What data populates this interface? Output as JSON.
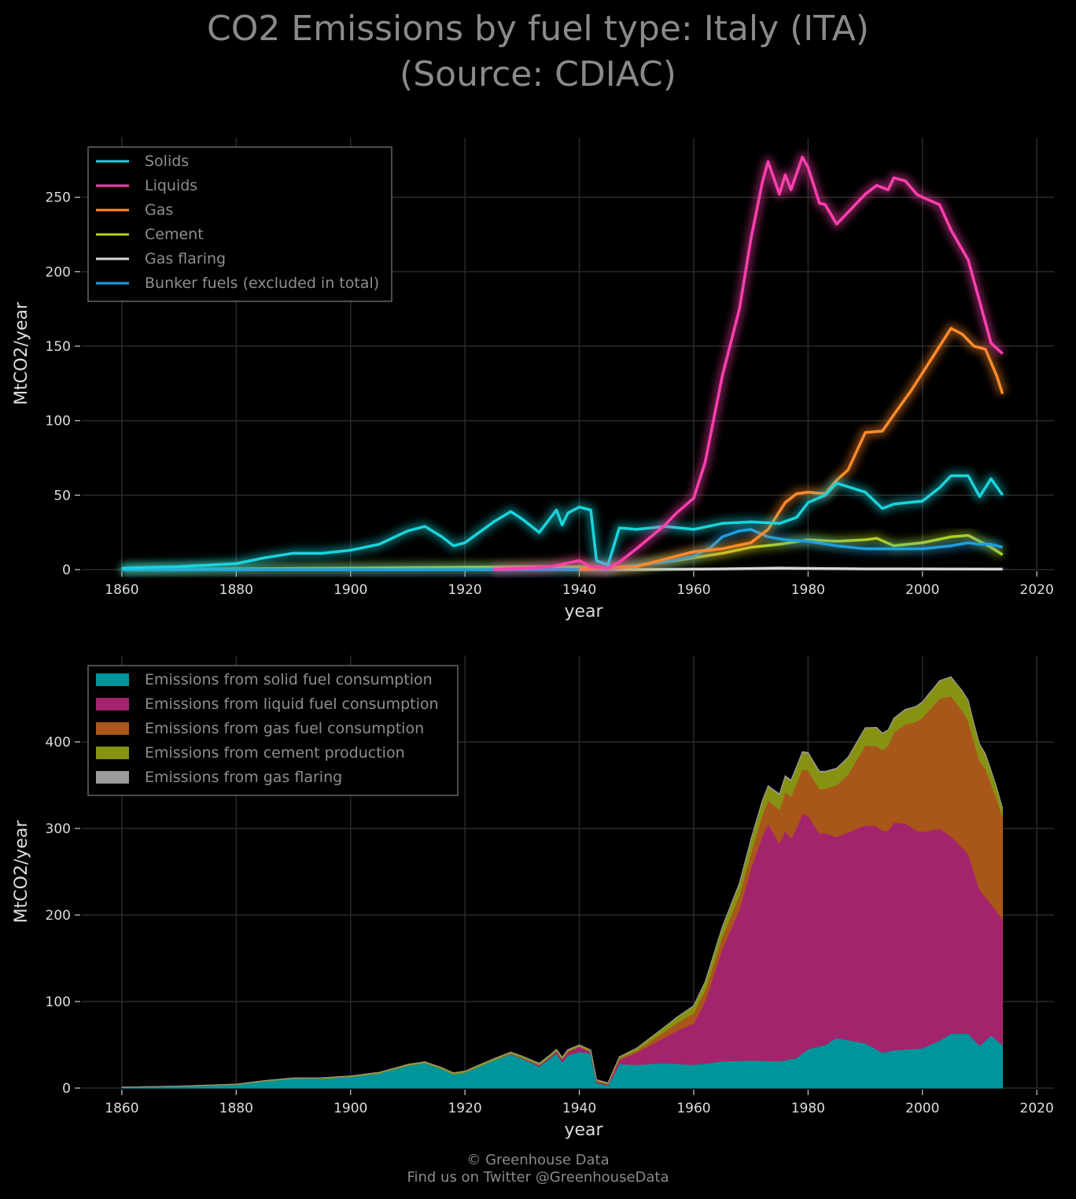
{
  "title": {
    "line1": "CO2 Emissions by fuel type: Italy (ITA)",
    "line2": "(Source: CDIAC)"
  },
  "footer": {
    "line1": "© Greenhouse Data",
    "line2": "Find us on Twitter @GreenhouseData"
  },
  "chart_data": [
    {
      "type": "line",
      "xlabel": "year",
      "ylabel": "MtCO2/year",
      "xlim": [
        1853,
        2023
      ],
      "ylim": [
        0,
        290
      ],
      "xticks": [
        1860,
        1880,
        1900,
        1920,
        1940,
        1960,
        1980,
        2000,
        2020
      ],
      "yticks": [
        0,
        50,
        100,
        150,
        200,
        250
      ],
      "grid": true,
      "legend_position": "top-left",
      "series": [
        {
          "name": "Solids",
          "color": "#1ad4dc",
          "points": [
            [
              1860,
              1
            ],
            [
              1870,
              2
            ],
            [
              1880,
              4
            ],
            [
              1885,
              8
            ],
            [
              1890,
              11
            ],
            [
              1895,
              11
            ],
            [
              1900,
              13
            ],
            [
              1905,
              17
            ],
            [
              1910,
              26
            ],
            [
              1913,
              29
            ],
            [
              1916,
              22
            ],
            [
              1918,
              16
            ],
            [
              1920,
              18
            ],
            [
              1925,
              32
            ],
            [
              1928,
              39
            ],
            [
              1930,
              34
            ],
            [
              1933,
              25
            ],
            [
              1936,
              40
            ],
            [
              1937,
              30
            ],
            [
              1938,
              38
            ],
            [
              1940,
              42
            ],
            [
              1942,
              40
            ],
            [
              1943,
              6
            ],
            [
              1945,
              3
            ],
            [
              1947,
              28
            ],
            [
              1950,
              27
            ],
            [
              1955,
              29
            ],
            [
              1960,
              27
            ],
            [
              1965,
              31
            ],
            [
              1970,
              32
            ],
            [
              1975,
              31
            ],
            [
              1978,
              35
            ],
            [
              1980,
              45
            ],
            [
              1983,
              50
            ],
            [
              1985,
              58
            ],
            [
              1990,
              52
            ],
            [
              1993,
              41
            ],
            [
              1995,
              44
            ],
            [
              2000,
              46
            ],
            [
              2003,
              55
            ],
            [
              2005,
              63
            ],
            [
              2008,
              63
            ],
            [
              2010,
              49
            ],
            [
              2012,
              61
            ],
            [
              2014,
              50
            ]
          ]
        },
        {
          "name": "Liquids",
          "color": "#ff3fae",
          "points": [
            [
              1925,
              0
            ],
            [
              1935,
              2
            ],
            [
              1940,
              6
            ],
            [
              1942,
              2
            ],
            [
              1945,
              1
            ],
            [
              1947,
              5
            ],
            [
              1950,
              14
            ],
            [
              1955,
              30
            ],
            [
              1957,
              38
            ],
            [
              1960,
              48
            ],
            [
              1962,
              72
            ],
            [
              1965,
              130
            ],
            [
              1968,
              175
            ],
            [
              1970,
              222
            ],
            [
              1972,
              260
            ],
            [
              1973,
              274
            ],
            [
              1975,
              252
            ],
            [
              1976,
              265
            ],
            [
              1977,
              255
            ],
            [
              1979,
              277
            ],
            [
              1980,
              270
            ],
            [
              1982,
              246
            ],
            [
              1983,
              245
            ],
            [
              1985,
              232
            ],
            [
              1987,
              240
            ],
            [
              1990,
              252
            ],
            [
              1992,
              258
            ],
            [
              1994,
              255
            ],
            [
              1995,
              263
            ],
            [
              1997,
              261
            ],
            [
              1999,
              252
            ],
            [
              2000,
              250
            ],
            [
              2003,
              245
            ],
            [
              2005,
              228
            ],
            [
              2008,
              208
            ],
            [
              2010,
              180
            ],
            [
              2012,
              152
            ],
            [
              2014,
              145
            ]
          ]
        },
        {
          "name": "Gas",
          "color": "#ff8a2a",
          "points": [
            [
              1940,
              0
            ],
            [
              1950,
              2
            ],
            [
              1955,
              7
            ],
            [
              1960,
              12
            ],
            [
              1965,
              14
            ],
            [
              1970,
              18
            ],
            [
              1973,
              27
            ],
            [
              1976,
              45
            ],
            [
              1978,
              51
            ],
            [
              1980,
              52
            ],
            [
              1983,
              51
            ],
            [
              1985,
              60
            ],
            [
              1987,
              67
            ],
            [
              1990,
              92
            ],
            [
              1993,
              93
            ],
            [
              1995,
              104
            ],
            [
              1998,
              120
            ],
            [
              2000,
              132
            ],
            [
              2003,
              150
            ],
            [
              2005,
              162
            ],
            [
              2007,
              158
            ],
            [
              2009,
              150
            ],
            [
              2011,
              148
            ],
            [
              2013,
              130
            ],
            [
              2014,
              118
            ]
          ]
        },
        {
          "name": "Cement",
          "color": "#b8d11c",
          "points": [
            [
              1860,
              0
            ],
            [
              1900,
              1
            ],
            [
              1930,
              2
            ],
            [
              1940,
              2
            ],
            [
              1945,
              1
            ],
            [
              1950,
              3
            ],
            [
              1955,
              5
            ],
            [
              1960,
              8
            ],
            [
              1965,
              11
            ],
            [
              1970,
              15
            ],
            [
              1975,
              17
            ],
            [
              1980,
              20
            ],
            [
              1985,
              19
            ],
            [
              1990,
              20
            ],
            [
              1992,
              21
            ],
            [
              1995,
              16
            ],
            [
              2000,
              18
            ],
            [
              2005,
              22
            ],
            [
              2008,
              23
            ],
            [
              2010,
              19
            ],
            [
              2012,
              15
            ],
            [
              2014,
              10
            ]
          ]
        },
        {
          "name": "Gas flaring",
          "color": "#d8d8d8",
          "points": [
            [
              1860,
              0
            ],
            [
              1950,
              0
            ],
            [
              1965,
              0.5
            ],
            [
              1975,
              1
            ],
            [
              1990,
              0.5
            ],
            [
              2014,
              0.3
            ]
          ]
        },
        {
          "name": "Bunker fuels (excluded in total)",
          "color": "#1e9ee0",
          "points": [
            [
              1860,
              0
            ],
            [
              1945,
              0
            ],
            [
              1950,
              3
            ],
            [
              1955,
              5
            ],
            [
              1960,
              9
            ],
            [
              1963,
              15
            ],
            [
              1965,
              22
            ],
            [
              1968,
              26
            ],
            [
              1970,
              27
            ],
            [
              1973,
              22
            ],
            [
              1976,
              20
            ],
            [
              1980,
              19
            ],
            [
              1985,
              16
            ],
            [
              1990,
              14
            ],
            [
              1995,
              14
            ],
            [
              2000,
              14
            ],
            [
              2005,
              16
            ],
            [
              2008,
              18
            ],
            [
              2010,
              17
            ],
            [
              2012,
              17
            ],
            [
              2014,
              15
            ]
          ]
        }
      ]
    },
    {
      "type": "area",
      "stacked": true,
      "xlabel": "year",
      "ylabel": "MtCO2/year",
      "xlim": [
        1853,
        2023
      ],
      "ylim": [
        0,
        500
      ],
      "xticks": [
        1860,
        1880,
        1900,
        1920,
        1940,
        1960,
        1980,
        2000,
        2020
      ],
      "yticks": [
        0,
        100,
        200,
        300,
        400
      ],
      "grid": true,
      "legend_position": "top-left",
      "series": [
        {
          "name": "Emissions from solid fuel consumption",
          "color": "#00959a",
          "ref": 0
        },
        {
          "name": "Emissions from liquid fuel consumption",
          "color": "#a3246c",
          "ref": 1
        },
        {
          "name": "Emissions from gas fuel consumption",
          "color": "#a8561a",
          "ref": 2
        },
        {
          "name": "Emissions from cement production",
          "color": "#879212",
          "ref": 3
        },
        {
          "name": "Emissions from gas flaring",
          "color": "#9a9a9a",
          "ref": 4
        }
      ]
    }
  ]
}
